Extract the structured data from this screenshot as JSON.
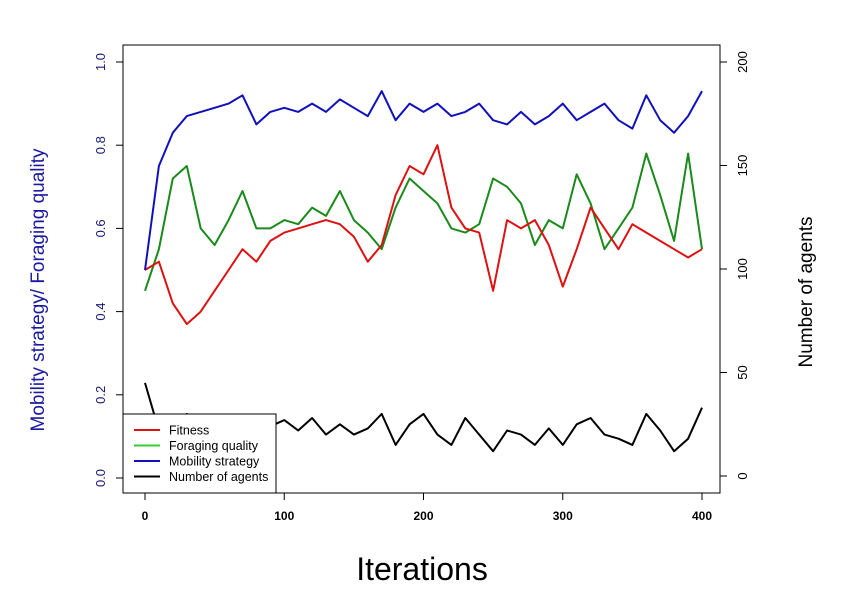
{
  "chart_data": {
    "type": "line",
    "title": "",
    "xlabel": "Iterations",
    "ylabel": "Mobility strategy/ Foraging quality",
    "ylabel_right": "Number of agents",
    "xlim": [
      0,
      400
    ],
    "ylim": [
      0,
      1
    ],
    "ylim_right": [
      0,
      200
    ],
    "x_ticks": [
      "0",
      "100",
      "200",
      "300",
      "400"
    ],
    "y_ticks": [
      "0.0",
      "0.2",
      "0.4",
      "0.6",
      "0.8",
      "1.0"
    ],
    "y_ticks_right": [
      "0",
      "50",
      "100",
      "150",
      "200"
    ],
    "grid": false,
    "legend_position": "bottom-left",
    "ylabel_color": "#1a1aa0",
    "x": [
      0,
      10,
      20,
      30,
      40,
      50,
      60,
      70,
      80,
      90,
      100,
      110,
      120,
      130,
      140,
      150,
      160,
      170,
      180,
      190,
      200,
      210,
      220,
      230,
      240,
      250,
      260,
      270,
      280,
      290,
      300,
      310,
      320,
      330,
      340,
      350,
      360,
      370,
      380,
      390,
      400
    ],
    "series": [
      {
        "name": "Fitness",
        "color": "#dd1111",
        "axis": "left",
        "values": [
          0.5,
          0.52,
          0.42,
          0.37,
          0.4,
          0.45,
          0.5,
          0.55,
          0.52,
          0.57,
          0.59,
          0.6,
          0.61,
          0.62,
          0.61,
          0.58,
          0.52,
          0.56,
          0.68,
          0.75,
          0.73,
          0.8,
          0.65,
          0.6,
          0.59,
          0.45,
          0.62,
          0.6,
          0.62,
          0.56,
          0.46,
          0.55,
          0.65,
          0.6,
          0.55,
          0.61,
          0.59,
          0.57,
          0.55,
          0.53,
          0.55
        ]
      },
      {
        "name": "Foraging quality",
        "color": "#1a8a1a",
        "legend_color": "#33cc33",
        "axis": "left",
        "values": [
          0.45,
          0.55,
          0.72,
          0.75,
          0.6,
          0.56,
          0.62,
          0.69,
          0.6,
          0.6,
          0.62,
          0.61,
          0.65,
          0.63,
          0.69,
          0.62,
          0.59,
          0.55,
          0.65,
          0.72,
          0.69,
          0.66,
          0.6,
          0.59,
          0.61,
          0.72,
          0.7,
          0.66,
          0.56,
          0.62,
          0.6,
          0.73,
          0.66,
          0.55,
          0.6,
          0.65,
          0.78,
          0.68,
          0.57,
          0.78,
          0.55
        ]
      },
      {
        "name": "Mobility strategy",
        "color": "#1111bb",
        "axis": "left",
        "values": [
          0.5,
          0.75,
          0.83,
          0.87,
          0.88,
          0.89,
          0.9,
          0.92,
          0.85,
          0.88,
          0.89,
          0.88,
          0.9,
          0.88,
          0.91,
          0.89,
          0.87,
          0.93,
          0.86,
          0.9,
          0.88,
          0.9,
          0.87,
          0.88,
          0.9,
          0.86,
          0.85,
          0.88,
          0.85,
          0.87,
          0.9,
          0.86,
          0.88,
          0.9,
          0.86,
          0.84,
          0.92,
          0.86,
          0.83,
          0.87,
          0.93
        ]
      },
      {
        "name": "Number of agents",
        "color": "#000000",
        "axis": "right",
        "values": [
          45,
          22,
          18,
          30,
          22,
          28,
          22,
          20,
          25,
          24,
          27,
          22,
          28,
          20,
          25,
          20,
          23,
          30,
          15,
          25,
          30,
          20,
          15,
          28,
          20,
          12,
          22,
          20,
          15,
          23,
          15,
          25,
          28,
          20,
          18,
          15,
          30,
          22,
          12,
          18,
          33
        ]
      }
    ]
  }
}
